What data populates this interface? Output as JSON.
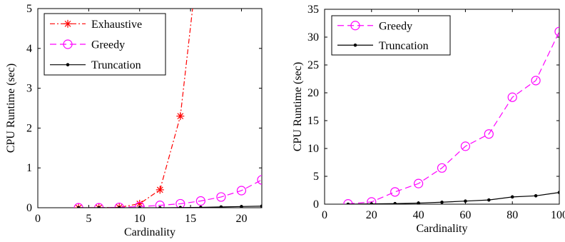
{
  "chart_data": [
    {
      "type": "line",
      "xlabel": "Cardinality",
      "ylabel": "CPU Runtime (sec)",
      "xlim": [
        0,
        22
      ],
      "ylim": [
        0,
        5
      ],
      "xticks": [
        0,
        5,
        10,
        15,
        20
      ],
      "yticks": [
        0,
        1,
        2,
        3,
        4,
        5
      ],
      "legend_position": "top-left",
      "series": [
        {
          "name": "Exhaustive",
          "color": "#ff0000",
          "line": "dash-dot",
          "marker": "asterisk",
          "x": [
            4,
            6,
            8,
            10,
            12,
            14,
            15.2
          ],
          "y": [
            0,
            0,
            0.01,
            0.1,
            0.45,
            2.3,
            5.0
          ],
          "marker_points": 6
        },
        {
          "name": "Greedy",
          "color": "#ff00ff",
          "line": "dashed",
          "marker": "circle",
          "x": [
            4,
            6,
            8,
            10,
            12,
            14,
            16,
            18,
            20,
            22
          ],
          "y": [
            0,
            0,
            0.01,
            0.03,
            0.06,
            0.1,
            0.17,
            0.27,
            0.43,
            0.7
          ]
        },
        {
          "name": "Truncation",
          "color": "#000000",
          "line": "solid",
          "marker": "dot",
          "x": [
            4,
            6,
            8,
            10,
            12,
            14,
            16,
            18,
            20,
            22
          ],
          "y": [
            0,
            0,
            0,
            0,
            0,
            0.005,
            0.01,
            0.02,
            0.03,
            0.04
          ]
        }
      ]
    },
    {
      "type": "line",
      "xlabel": "Cardinality",
      "ylabel": "CPU Runtime (sec)",
      "xlim": [
        0,
        100
      ],
      "ylim": [
        0,
        35
      ],
      "xticks": [
        0,
        20,
        40,
        60,
        80,
        100
      ],
      "yticks": [
        0,
        5,
        10,
        15,
        20,
        25,
        30,
        35
      ],
      "legend_position": "top-left",
      "series": [
        {
          "name": "Greedy",
          "color": "#ff00ff",
          "line": "dashed",
          "marker": "circle",
          "x": [
            10,
            20,
            30,
            40,
            50,
            60,
            70,
            80,
            90,
            100
          ],
          "y": [
            0.05,
            0.4,
            2.2,
            3.7,
            6.5,
            10.4,
            12.6,
            19.2,
            22.2,
            31.0
          ]
        },
        {
          "name": "Truncation",
          "color": "#000000",
          "line": "solid",
          "marker": "dot",
          "x": [
            10,
            20,
            30,
            40,
            50,
            60,
            70,
            80,
            90,
            100
          ],
          "y": [
            0,
            0.05,
            0.1,
            0.2,
            0.35,
            0.55,
            0.75,
            1.3,
            1.5,
            2.1
          ]
        }
      ]
    }
  ]
}
